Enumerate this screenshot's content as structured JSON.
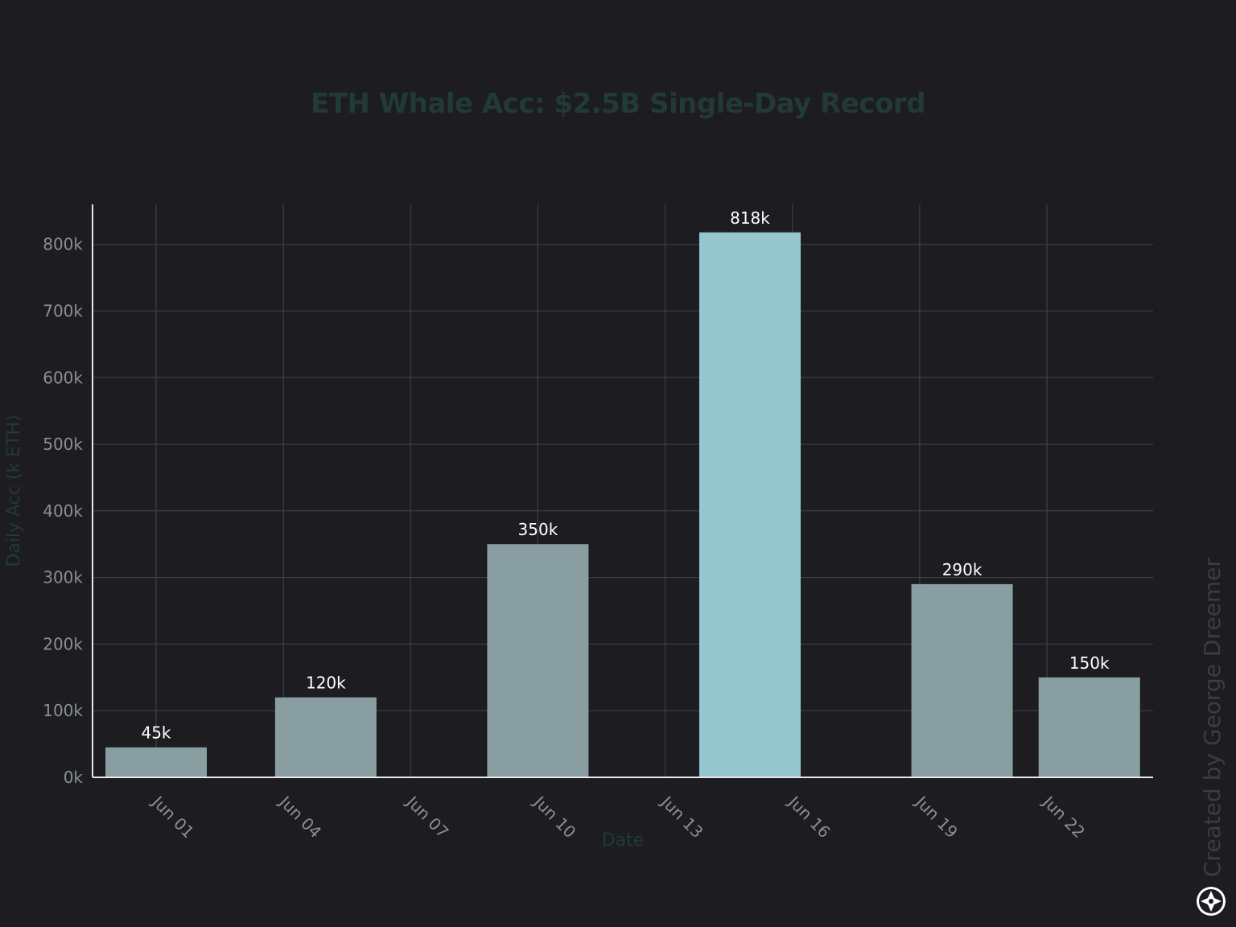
{
  "chart_data": {
    "type": "bar",
    "title": "ETH Whale Acc: $2.5B Single-Day Record",
    "xlabel": "Date",
    "ylabel": "Daily Acc (k ETH)",
    "x_ticks": [
      "Jun 01",
      "Jun 04",
      "Jun 07",
      "Jun 10",
      "Jun 13",
      "Jun 16",
      "Jun 19",
      "Jun 22"
    ],
    "x_tick_dates": [
      "2024-06-01",
      "2024-06-04",
      "2024-06-07",
      "2024-06-10",
      "2024-06-13",
      "2024-06-16",
      "2024-06-19",
      "2024-06-22"
    ],
    "y_ticks": [
      "0k",
      "100k",
      "200k",
      "300k",
      "400k",
      "500k",
      "600k",
      "700k",
      "800k"
    ],
    "ylim": [
      0,
      860
    ],
    "grid": true,
    "bars": [
      {
        "date": "2024-06-01",
        "value": 45,
        "label": "45k",
        "highlight": false
      },
      {
        "date": "2024-06-05",
        "value": 120,
        "label": "120k",
        "highlight": false
      },
      {
        "date": "2024-06-10",
        "value": 350,
        "label": "350k",
        "highlight": false
      },
      {
        "date": "2024-06-15",
        "value": 818,
        "label": "818k",
        "highlight": true
      },
      {
        "date": "2024-06-20",
        "value": 290,
        "label": "290k",
        "highlight": false
      },
      {
        "date": "2024-06-23",
        "value": 150,
        "label": "150k",
        "highlight": false
      }
    ]
  },
  "colors": {
    "background": "#1c1c21",
    "bar": "#889ea1",
    "bar_highlight": "#95c8ce",
    "grid": "#3e4047",
    "axis": "#e8e8e8",
    "title": "#223a36",
    "axis_title": "#223a36"
  },
  "watermark": {
    "text": "Created by George Dreemer",
    "icon": "compass-logo-icon"
  }
}
